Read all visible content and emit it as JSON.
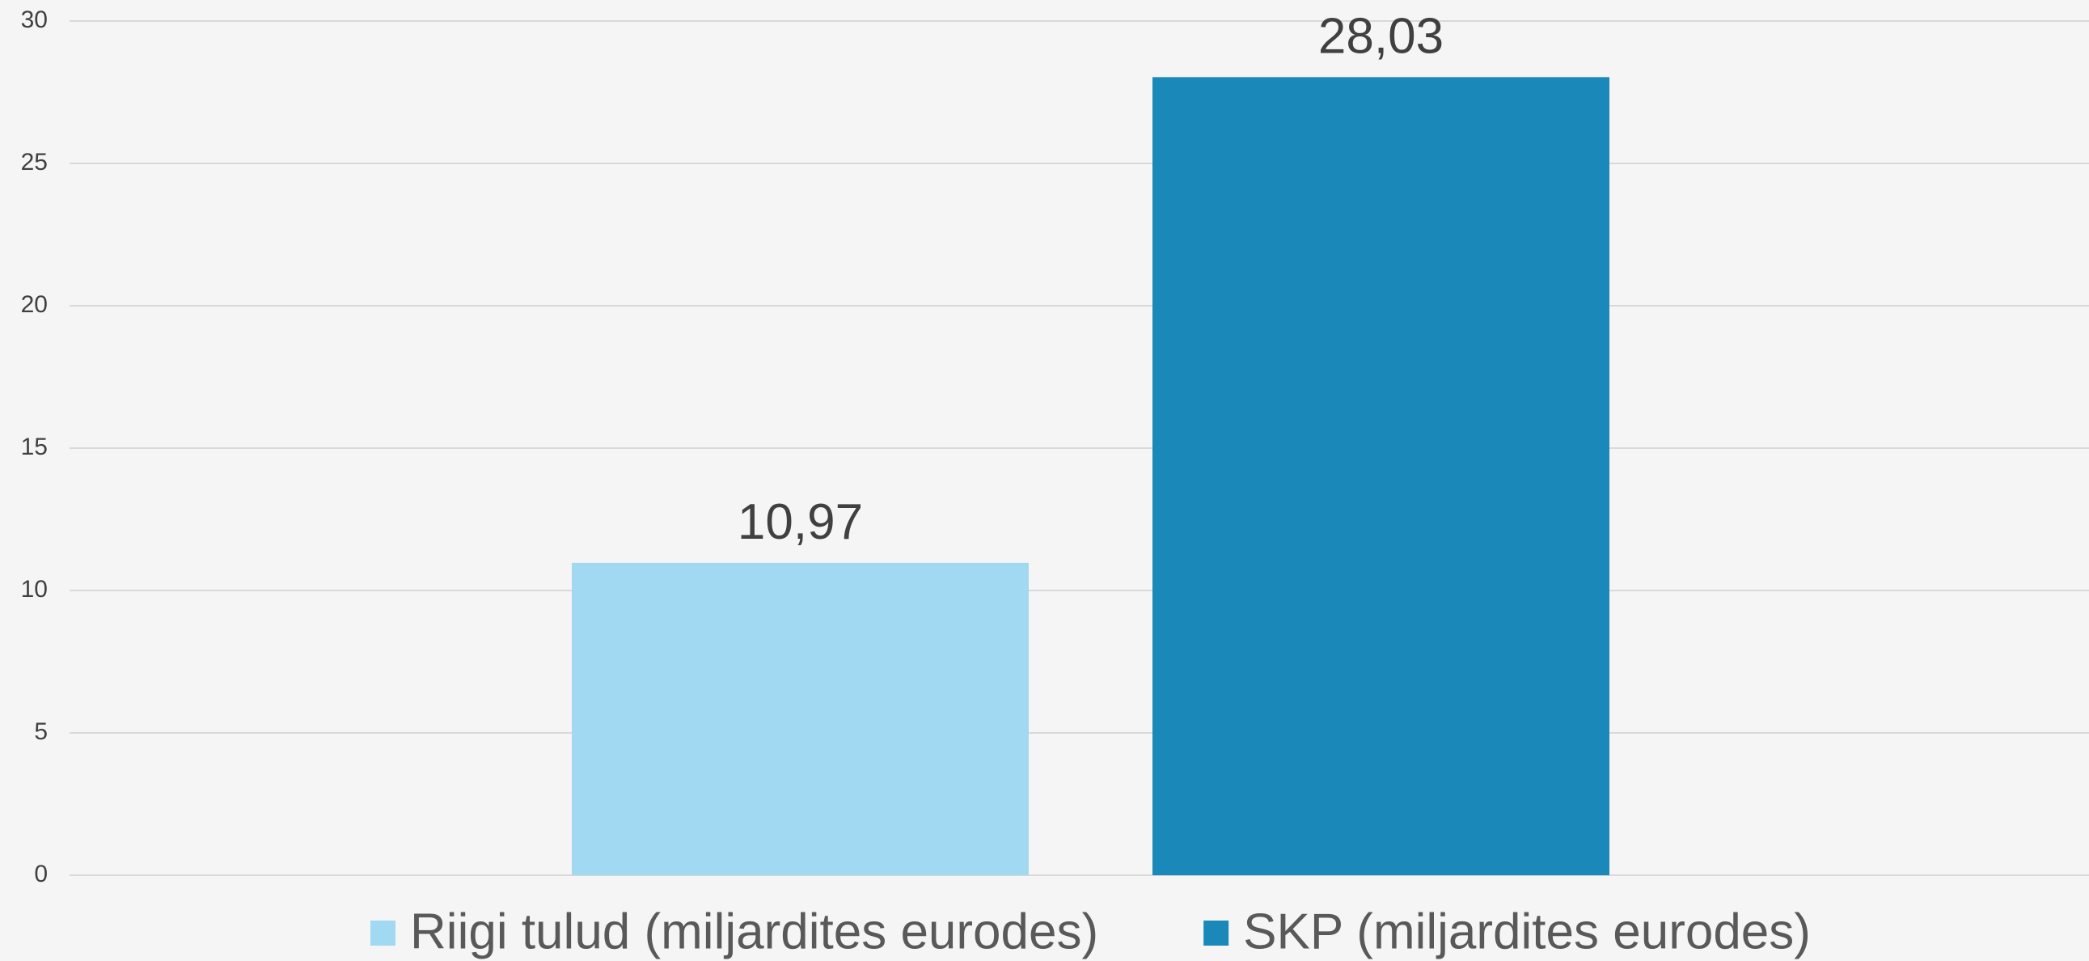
{
  "chart_data": {
    "type": "bar",
    "categories": [
      null
    ],
    "series": [
      {
        "name": "Riigi tulud (miljardites eurodes)",
        "color": "#a1d9f2",
        "values": [
          10.97
        ],
        "value_labels": [
          "10,97"
        ]
      },
      {
        "name": "SKP (miljardites eurodes)",
        "color": "#1a88b8",
        "values": [
          28.03
        ],
        "value_labels": [
          "28,03"
        ]
      }
    ],
    "ylim": [
      0,
      30
    ],
    "yticks": [
      0,
      5,
      10,
      15,
      20,
      25,
      30
    ],
    "grid": true,
    "legend": "bottom"
  }
}
